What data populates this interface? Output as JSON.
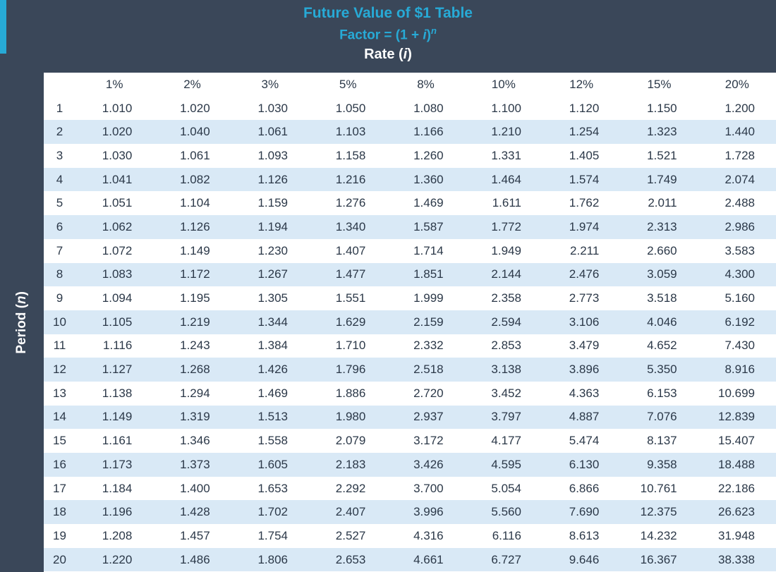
{
  "header": {
    "title": "Future Value of $1 Table",
    "formula": {
      "prefix": "Factor = (1 + ",
      "i": "i",
      "close": ")",
      "exponent": "n"
    },
    "rate": {
      "prefix": "Rate (",
      "i": "i",
      "suffix": ")"
    }
  },
  "period_axis": {
    "prefix": "Period (",
    "n": "n",
    "suffix": ")"
  },
  "colors": {
    "background": "#3A4759",
    "accent_cyan": "#27AAD6",
    "stripe_blue": "#D9E9F6",
    "text_dark": "#2B3848"
  },
  "table": {
    "rate_headers": [
      "1%",
      "2%",
      "3%",
      "5%",
      "8%",
      "10%",
      "12%",
      "15%",
      "20%"
    ],
    "rows": [
      {
        "period": "1",
        "values": [
          "1.010",
          "1.020",
          "1.030",
          "1.050",
          "1.080",
          "1.100",
          "1.120",
          "1.150",
          "1.200"
        ]
      },
      {
        "period": "2",
        "values": [
          "1.020",
          "1.040",
          "1.061",
          "1.103",
          "1.166",
          "1.210",
          "1.254",
          "1.323",
          "1.440"
        ]
      },
      {
        "period": "3",
        "values": [
          "1.030",
          "1.061",
          "1.093",
          "1.158",
          "1.260",
          "1.331",
          "1.405",
          "1.521",
          "1.728"
        ]
      },
      {
        "period": "4",
        "values": [
          "1.041",
          "1.082",
          "1.126",
          "1.216",
          "1.360",
          "1.464",
          "1.574",
          "1.749",
          "2.074"
        ]
      },
      {
        "period": "5",
        "values": [
          "1.051",
          "1.104",
          "1.159",
          "1.276",
          "1.469",
          "1.611",
          "1.762",
          "2.011",
          "2.488"
        ]
      },
      {
        "period": "6",
        "values": [
          "1.062",
          "1.126",
          "1.194",
          "1.340",
          "1.587",
          "1.772",
          "1.974",
          "2.313",
          "2.986"
        ]
      },
      {
        "period": "7",
        "values": [
          "1.072",
          "1.149",
          "1.230",
          "1.407",
          "1.714",
          "1.949",
          "2.211",
          "2.660",
          "3.583"
        ]
      },
      {
        "period": "8",
        "values": [
          "1.083",
          "1.172",
          "1.267",
          "1.477",
          "1.851",
          "2.144",
          "2.476",
          "3.059",
          "4.300"
        ]
      },
      {
        "period": "9",
        "values": [
          "1.094",
          "1.195",
          "1.305",
          "1.551",
          "1.999",
          "2.358",
          "2.773",
          "3.518",
          "5.160"
        ]
      },
      {
        "period": "10",
        "values": [
          "1.105",
          "1.219",
          "1.344",
          "1.629",
          "2.159",
          "2.594",
          "3.106",
          "4.046",
          "6.192"
        ]
      },
      {
        "period": "11",
        "values": [
          "1.116",
          "1.243",
          "1.384",
          "1.710",
          "2.332",
          "2.853",
          "3.479",
          "4.652",
          "7.430"
        ]
      },
      {
        "period": "12",
        "values": [
          "1.127",
          "1.268",
          "1.426",
          "1.796",
          "2.518",
          "3.138",
          "3.896",
          "5.350",
          "8.916"
        ]
      },
      {
        "period": "13",
        "values": [
          "1.138",
          "1.294",
          "1.469",
          "1.886",
          "2.720",
          "3.452",
          "4.363",
          "6.153",
          "10.699"
        ]
      },
      {
        "period": "14",
        "values": [
          "1.149",
          "1.319",
          "1.513",
          "1.980",
          "2.937",
          "3.797",
          "4.887",
          "7.076",
          "12.839"
        ]
      },
      {
        "period": "15",
        "values": [
          "1.161",
          "1.346",
          "1.558",
          "2.079",
          "3.172",
          "4.177",
          "5.474",
          "8.137",
          "15.407"
        ]
      },
      {
        "period": "16",
        "values": [
          "1.173",
          "1.373",
          "1.605",
          "2.183",
          "3.426",
          "4.595",
          "6.130",
          "9.358",
          "18.488"
        ]
      },
      {
        "period": "17",
        "values": [
          "1.184",
          "1.400",
          "1.653",
          "2.292",
          "3.700",
          "5.054",
          "6.866",
          "10.761",
          "22.186"
        ]
      },
      {
        "period": "18",
        "values": [
          "1.196",
          "1.428",
          "1.702",
          "2.407",
          "3.996",
          "5.560",
          "7.690",
          "12.375",
          "26.623"
        ]
      },
      {
        "period": "19",
        "values": [
          "1.208",
          "1.457",
          "1.754",
          "2.527",
          "4.316",
          "6.116",
          "8.613",
          "14.232",
          "31.948"
        ]
      },
      {
        "period": "20",
        "values": [
          "1.220",
          "1.486",
          "1.806",
          "2.653",
          "4.661",
          "6.727",
          "9.646",
          "16.367",
          "38.338"
        ]
      }
    ]
  }
}
